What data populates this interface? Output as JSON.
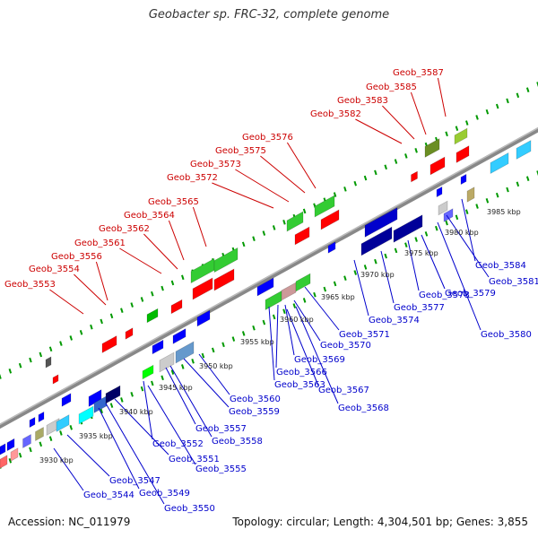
{
  "title": "Geobacter sp. FRC-32, complete genome",
  "accession": "Accession: NC_011979",
  "summary": "Topology: circular; Length: 4,304,501 bp; Genes: 3,855",
  "colors": {
    "forward": "#cc0000",
    "reverse": "#0000cc",
    "backbone": "#888888",
    "ticks": "#009900"
  },
  "kbp_labels": [
    "3930 kbp",
    "3935 kbp",
    "3940 kbp",
    "3945 kbp",
    "3950 kbp",
    "3955 kbp",
    "3960 kbp",
    "3965 kbp",
    "3970 kbp",
    "3975 kbp",
    "3980 kbp",
    "3985 kbp"
  ],
  "forward_genes": [
    "Geob_3553",
    "Geob_3554",
    "Geob_3556",
    "Geob_3561",
    "Geob_3562",
    "Geob_3564",
    "Geob_3565",
    "Geob_3572",
    "Geob_3573",
    "Geob_3575",
    "Geob_3576",
    "Geob_3582",
    "Geob_3583",
    "Geob_3585",
    "Geob_3587"
  ],
  "reverse_genes": [
    "Geob_3544",
    "Geob_3547",
    "Geob_3549",
    "Geob_3550",
    "Geob_3551",
    "Geob_3552",
    "Geob_3555",
    "Geob_3557",
    "Geob_3558",
    "Geob_3559",
    "Geob_3560",
    "Geob_3563",
    "Geob_3566",
    "Geob_3567",
    "Geob_3568",
    "Geob_3569",
    "Geob_3570",
    "Geob_3571",
    "Geob_3574",
    "Geob_3577",
    "Geob_3578",
    "Geob_3579",
    "Geob_3580",
    "Geob_3581",
    "Geob_3584"
  ]
}
